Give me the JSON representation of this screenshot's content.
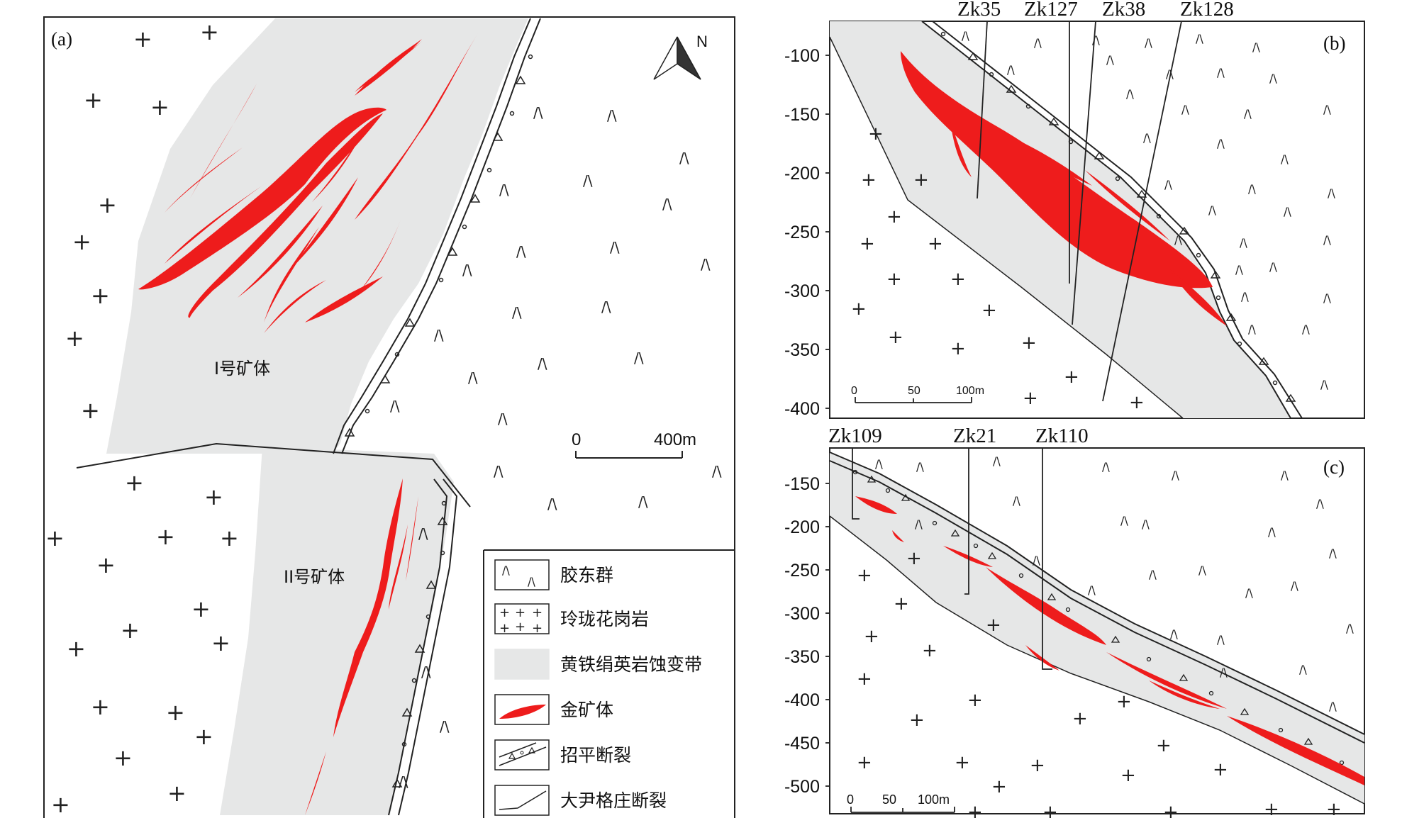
{
  "panel_a": {
    "label": "(a)",
    "north": "N",
    "scale": {
      "zero": "0",
      "end": "400m"
    },
    "orebody_1": "I号矿体",
    "orebody_2": "II号矿体"
  },
  "legend": {
    "items": [
      {
        "key": "jiaodong",
        "label": "胶东群"
      },
      {
        "key": "granite",
        "label": "玲珑花岗岩"
      },
      {
        "key": "alteration",
        "label": "黄铁绢英岩蚀变带"
      },
      {
        "key": "ore",
        "label": "金矿体"
      },
      {
        "key": "zhaoping_fault",
        "label": "招平断裂"
      },
      {
        "key": "dayingezhuang_fault",
        "label": "大尹格庄断裂"
      }
    ]
  },
  "panel_b": {
    "label": "(b)",
    "y_ticks": [
      "-100",
      "-150",
      "-200",
      "-250",
      "-300",
      "-350",
      "-400"
    ],
    "drillholes": [
      "Zk35",
      "Zk127",
      "Zk38",
      "Zk128"
    ],
    "scale": {
      "zero": "0",
      "mid": "50",
      "end": "100m"
    }
  },
  "panel_c": {
    "label": "(c)",
    "y_ticks": [
      "-150",
      "-200",
      "-250",
      "-300",
      "-350",
      "-400",
      "-450",
      "-500"
    ],
    "drillholes": [
      "Zk109",
      "Zk21",
      "Zk110"
    ],
    "scale": {
      "zero": "0",
      "mid": "50",
      "end": "100m"
    }
  },
  "symbols": {
    "granite": "+",
    "jiaodong": "/\\"
  },
  "colors": {
    "ore": "#ee1c1c",
    "alteration": "#e6e7e7",
    "line": "#222222"
  }
}
